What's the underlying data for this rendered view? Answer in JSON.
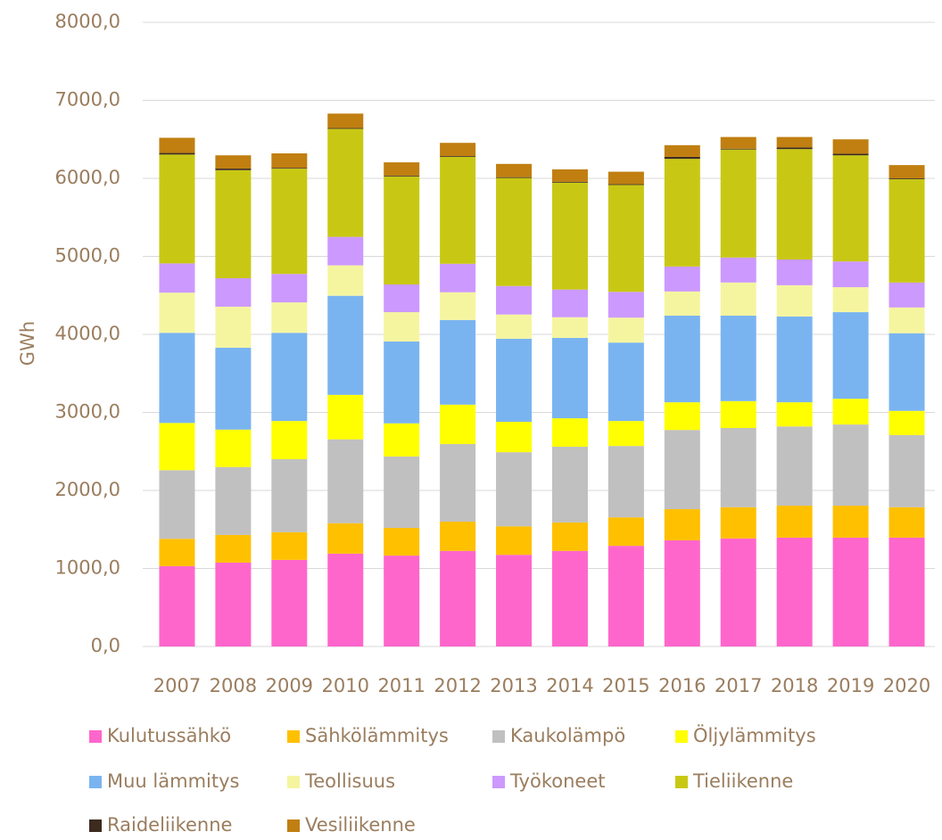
{
  "chart_data": {
    "type": "stacked_bar",
    "y_label": "GWh",
    "categories": [
      "2007",
      "2008",
      "2009",
      "2010",
      "2011",
      "2012",
      "2013",
      "2014",
      "2015",
      "2016",
      "2017",
      "2018",
      "2019",
      "2020"
    ],
    "ylim": [
      0,
      8000
    ],
    "yticks": [
      {
        "value": 0,
        "label": "0,0"
      },
      {
        "value": 1000,
        "label": "1000,0"
      },
      {
        "value": 2000,
        "label": "2000,0"
      },
      {
        "value": 3000,
        "label": "3000,0"
      },
      {
        "value": 4000,
        "label": "4000,0"
      },
      {
        "value": 5000,
        "label": "5000,0"
      },
      {
        "value": 6000,
        "label": "6000,0"
      },
      {
        "value": 7000,
        "label": "7000,0"
      },
      {
        "value": 8000,
        "label": "8000,0"
      }
    ],
    "grid": true,
    "legend": "bottom",
    "series": [
      {
        "name": "Kulutussähkö",
        "color": "#ff66cc",
        "values": [
          1030,
          1075,
          1110,
          1190,
          1165,
          1225,
          1175,
          1225,
          1290,
          1360,
          1385,
          1395,
          1395,
          1395
        ]
      },
      {
        "name": "Sähkölämmitys",
        "color": "#ffc000",
        "values": [
          350,
          355,
          355,
          390,
          355,
          375,
          365,
          365,
          365,
          400,
          400,
          410,
          410,
          390
        ]
      },
      {
        "name": "Kaukolämpö",
        "color": "#c0c0c0",
        "values": [
          880,
          870,
          935,
          1075,
          915,
          995,
          950,
          970,
          915,
          1015,
          1015,
          1015,
          1040,
          925
        ]
      },
      {
        "name": "Öljylämmitys",
        "color": "#ffff00",
        "values": [
          605,
          480,
          490,
          570,
          425,
          505,
          390,
          365,
          320,
          355,
          345,
          310,
          330,
          310
        ]
      },
      {
        "name": "Muu lämmitys",
        "color": "#7ab4f0",
        "values": [
          1155,
          1050,
          1130,
          1270,
          1050,
          1085,
          1065,
          1030,
          1005,
          1110,
          1095,
          1100,
          1110,
          995
        ]
      },
      {
        "name": "Teollisuus",
        "color": "#f5f5a0",
        "values": [
          515,
          525,
          390,
          390,
          375,
          355,
          310,
          265,
          320,
          310,
          425,
          400,
          320,
          330
        ]
      },
      {
        "name": "Työkoneet",
        "color": "#cc99ff",
        "values": [
          375,
          365,
          365,
          365,
          355,
          365,
          365,
          355,
          330,
          320,
          320,
          330,
          330,
          320
        ]
      },
      {
        "name": "Tieliikenne",
        "color": "#c8c814",
        "values": [
          1395,
          1385,
          1350,
          1385,
          1385,
          1370,
          1385,
          1370,
          1370,
          1380,
          1385,
          1415,
          1360,
          1325
        ]
      },
      {
        "name": "Raideliikenne",
        "color": "#3d2b1f",
        "values": [
          20,
          20,
          10,
          10,
          10,
          10,
          10,
          10,
          10,
          25,
          10,
          20,
          20,
          10
        ]
      },
      {
        "name": "Vesiliikenne",
        "color": "#c07f10",
        "values": [
          195,
          170,
          185,
          185,
          170,
          170,
          170,
          160,
          160,
          150,
          150,
          135,
          185,
          170
        ]
      }
    ]
  }
}
